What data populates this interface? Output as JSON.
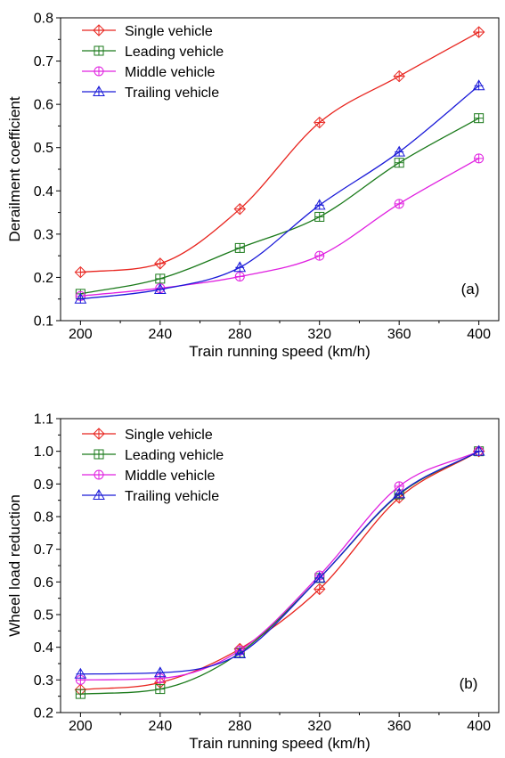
{
  "chart_data": [
    {
      "type": "line",
      "panel_label": "(a)",
      "xlabel": "Train running speed (km/h)",
      "ylabel": "Derailment coefficient",
      "xlim": [
        190,
        410
      ],
      "ylim": [
        0.1,
        0.8
      ],
      "xticks": [
        "200",
        "240",
        "280",
        "320",
        "360",
        "400"
      ],
      "yticks": [
        "0.1",
        "0.2",
        "0.3",
        "0.4",
        "0.5",
        "0.6",
        "0.7",
        "0.8"
      ],
      "x": [
        200,
        240,
        280,
        320,
        360,
        400
      ],
      "legend_position": "top-left",
      "grid": false,
      "series": [
        {
          "name": "Single vehicle",
          "marker": "diamond-plus",
          "color": "#e8251f",
          "values": [
            0.212,
            0.232,
            0.358,
            0.558,
            0.665,
            0.767
          ]
        },
        {
          "name": "Leading vehicle",
          "marker": "square-plus",
          "color": "#1b7a1b",
          "values": [
            0.162,
            0.197,
            0.268,
            0.34,
            0.465,
            0.568
          ]
        },
        {
          "name": "Middle vehicle",
          "marker": "circle-plus",
          "color": "#e020e0",
          "values": [
            0.157,
            0.175,
            0.202,
            0.25,
            0.37,
            0.475
          ]
        },
        {
          "name": "Trailing vehicle",
          "marker": "triangle-plus",
          "color": "#1a1ad8",
          "values": [
            0.15,
            0.172,
            0.223,
            0.367,
            0.49,
            0.643
          ]
        }
      ]
    },
    {
      "type": "line",
      "panel_label": "(b)",
      "xlabel": "Train running speed (km/h)",
      "ylabel": "Wheel load reduction",
      "xlim": [
        190,
        410
      ],
      "ylim": [
        0.2,
        1.1
      ],
      "xticks": [
        "200",
        "240",
        "280",
        "320",
        "360",
        "400"
      ],
      "yticks": [
        "0.2",
        "0.3",
        "0.4",
        "0.5",
        "0.6",
        "0.7",
        "0.8",
        "0.9",
        "1.0",
        "1.1"
      ],
      "x": [
        200,
        240,
        280,
        320,
        360,
        400
      ],
      "legend_position": "top-left",
      "grid": false,
      "series": [
        {
          "name": "Single vehicle",
          "marker": "diamond-plus",
          "color": "#e8251f",
          "values": [
            0.27,
            0.292,
            0.395,
            0.578,
            0.858,
            1.0
          ]
        },
        {
          "name": "Leading vehicle",
          "marker": "square-plus",
          "color": "#1b7a1b",
          "values": [
            0.257,
            0.272,
            0.383,
            0.612,
            0.868,
            1.0
          ]
        },
        {
          "name": "Middle vehicle",
          "marker": "circle-plus",
          "color": "#e020e0",
          "values": [
            0.3,
            0.305,
            0.39,
            0.62,
            0.893,
            1.0
          ]
        },
        {
          "name": "Trailing vehicle",
          "marker": "triangle-plus",
          "color": "#1a1ad8",
          "values": [
            0.318,
            0.322,
            0.38,
            0.612,
            0.87,
            1.0
          ]
        }
      ]
    }
  ]
}
